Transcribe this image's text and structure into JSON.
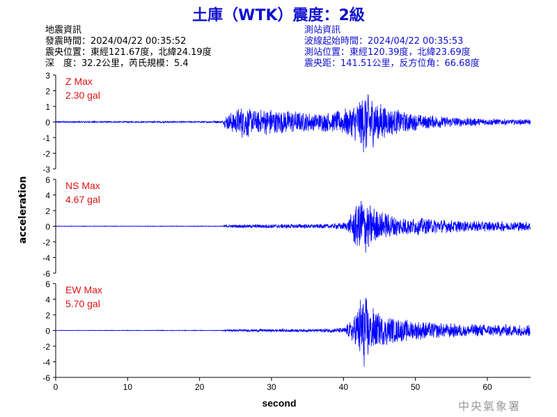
{
  "header": {
    "title": "土庫（WTK）震度：2級"
  },
  "quake_info": {
    "heading": "地震資訊",
    "origin_time": "發震時間：2024/04/22 00:35:52",
    "epicenter": "震央位置：東經121.67度，北緯24.19度",
    "depth_magnitude": "深　度：32.2公里，芮氏規模：5.4"
  },
  "station_info": {
    "heading": "測站資訊",
    "wave_start": "波線起始時間：2024/04/22 00:35:53",
    "station_location": "測站位置：東經120.39度，北緯23.69度",
    "distance_azimuth": "震央距：141.51公里，反方位角：66.68度"
  },
  "footer": {
    "watermark": "中央氣象署"
  },
  "colors": {
    "title": "#1010d0",
    "trace": "#0000ff",
    "max_label": "#e01010",
    "axis": "#000000"
  },
  "chart_data": {
    "type": "line",
    "xlabel": "second",
    "ylabel": "acceleration",
    "xlim": [
      0,
      66
    ],
    "xticks": [
      0,
      10,
      20,
      30,
      40,
      50,
      60
    ],
    "grid": false,
    "panels": [
      {
        "component": "Z",
        "max_label": "Z Max",
        "max_value": "2.30 gal",
        "ylim": [
          -3,
          3
        ],
        "yticks": [
          3,
          2,
          1,
          0,
          -1,
          -2,
          -3
        ],
        "series": [
          {
            "t": 0,
            "amp": 0.05
          },
          {
            "t": 10,
            "amp": 0.05
          },
          {
            "t": 20,
            "amp": 0.05
          },
          {
            "t": 23.2,
            "amp": 0.08
          },
          {
            "t": 23.6,
            "amp": 0.45
          },
          {
            "t": 24.5,
            "amp": 0.7
          },
          {
            "t": 26,
            "amp": 1.1
          },
          {
            "t": 28,
            "amp": 0.8
          },
          {
            "t": 30,
            "amp": 0.9
          },
          {
            "t": 33,
            "amp": 0.75
          },
          {
            "t": 36,
            "amp": 0.6
          },
          {
            "t": 39,
            "amp": 0.7
          },
          {
            "t": 41,
            "amp": 1.0
          },
          {
            "t": 42.2,
            "amp": 1.6
          },
          {
            "t": 43.2,
            "amp": 2.3
          },
          {
            "t": 44.5,
            "amp": 1.5
          },
          {
            "t": 46,
            "amp": 1.0
          },
          {
            "t": 48,
            "amp": 0.8
          },
          {
            "t": 50,
            "amp": 0.55
          },
          {
            "t": 53,
            "amp": 0.4
          },
          {
            "t": 57,
            "amp": 0.3
          },
          {
            "t": 62,
            "amp": 0.2
          },
          {
            "t": 66,
            "amp": 0.18
          }
        ]
      },
      {
        "component": "NS",
        "max_label": "NS Max",
        "max_value": "4.67 gal",
        "ylim": [
          -6,
          6
        ],
        "yticks": [
          6,
          4,
          2,
          0,
          -2,
          -4,
          -6
        ],
        "series": [
          {
            "t": 0,
            "amp": 0.03
          },
          {
            "t": 23.2,
            "amp": 0.04
          },
          {
            "t": 23.6,
            "amp": 0.2
          },
          {
            "t": 28,
            "amp": 0.25
          },
          {
            "t": 33,
            "amp": 0.3
          },
          {
            "t": 38,
            "amp": 0.3
          },
          {
            "t": 40.5,
            "amp": 0.6
          },
          {
            "t": 41.5,
            "amp": 2.5
          },
          {
            "t": 42.5,
            "amp": 4.67
          },
          {
            "t": 43.5,
            "amp": 3.0
          },
          {
            "t": 45,
            "amp": 2.0
          },
          {
            "t": 48,
            "amp": 1.3
          },
          {
            "t": 52,
            "amp": 1.0
          },
          {
            "t": 56,
            "amp": 0.8
          },
          {
            "t": 60,
            "amp": 0.7
          },
          {
            "t": 66,
            "amp": 0.6
          }
        ]
      },
      {
        "component": "EW",
        "max_label": "EW Max",
        "max_value": "5.70 gal",
        "ylim": [
          -6,
          6
        ],
        "yticks": [
          6,
          4,
          2,
          0,
          -2,
          -4,
          -6
        ],
        "series": [
          {
            "t": 0,
            "amp": 0.03
          },
          {
            "t": 23.2,
            "amp": 0.04
          },
          {
            "t": 23.6,
            "amp": 0.15
          },
          {
            "t": 30,
            "amp": 0.2
          },
          {
            "t": 36,
            "amp": 0.2
          },
          {
            "t": 40,
            "amp": 0.35
          },
          {
            "t": 41,
            "amp": 1.2
          },
          {
            "t": 42,
            "amp": 3.0
          },
          {
            "t": 42.6,
            "amp": 5.7
          },
          {
            "t": 43.5,
            "amp": 3.5
          },
          {
            "t": 45,
            "amp": 2.2
          },
          {
            "t": 48,
            "amp": 1.5
          },
          {
            "t": 52,
            "amp": 1.1
          },
          {
            "t": 56,
            "amp": 0.9
          },
          {
            "t": 60,
            "amp": 0.8
          },
          {
            "t": 66,
            "amp": 0.8
          }
        ]
      }
    ]
  }
}
